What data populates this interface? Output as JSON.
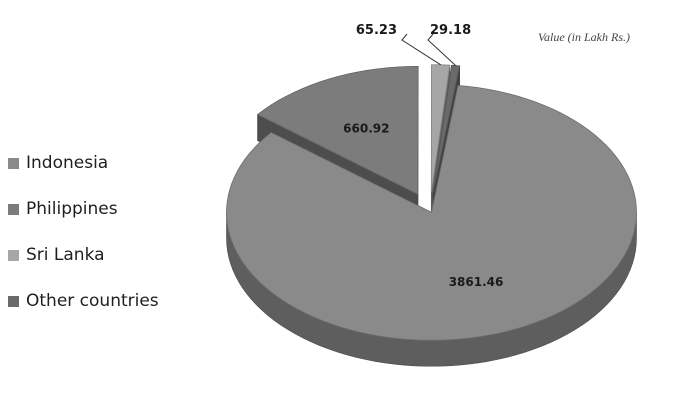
{
  "chart_data": {
    "type": "pie",
    "title": "",
    "unit_label": "Value (in Lakh Rs.)",
    "categories": [
      "Indonesia",
      "Philippines",
      "Sri Lanka",
      "Other countries"
    ],
    "values": [
      3861.46,
      660.92,
      65.23,
      29.18
    ],
    "value_labels": [
      "3861.46",
      "660.92",
      "65.23",
      "29.18"
    ],
    "colors": [
      "#8a8a8a",
      "#7c7c7c",
      "#a6a6a6",
      "#6a6a6a"
    ],
    "exploded": true,
    "three_d": true,
    "legend_position": "left"
  }
}
